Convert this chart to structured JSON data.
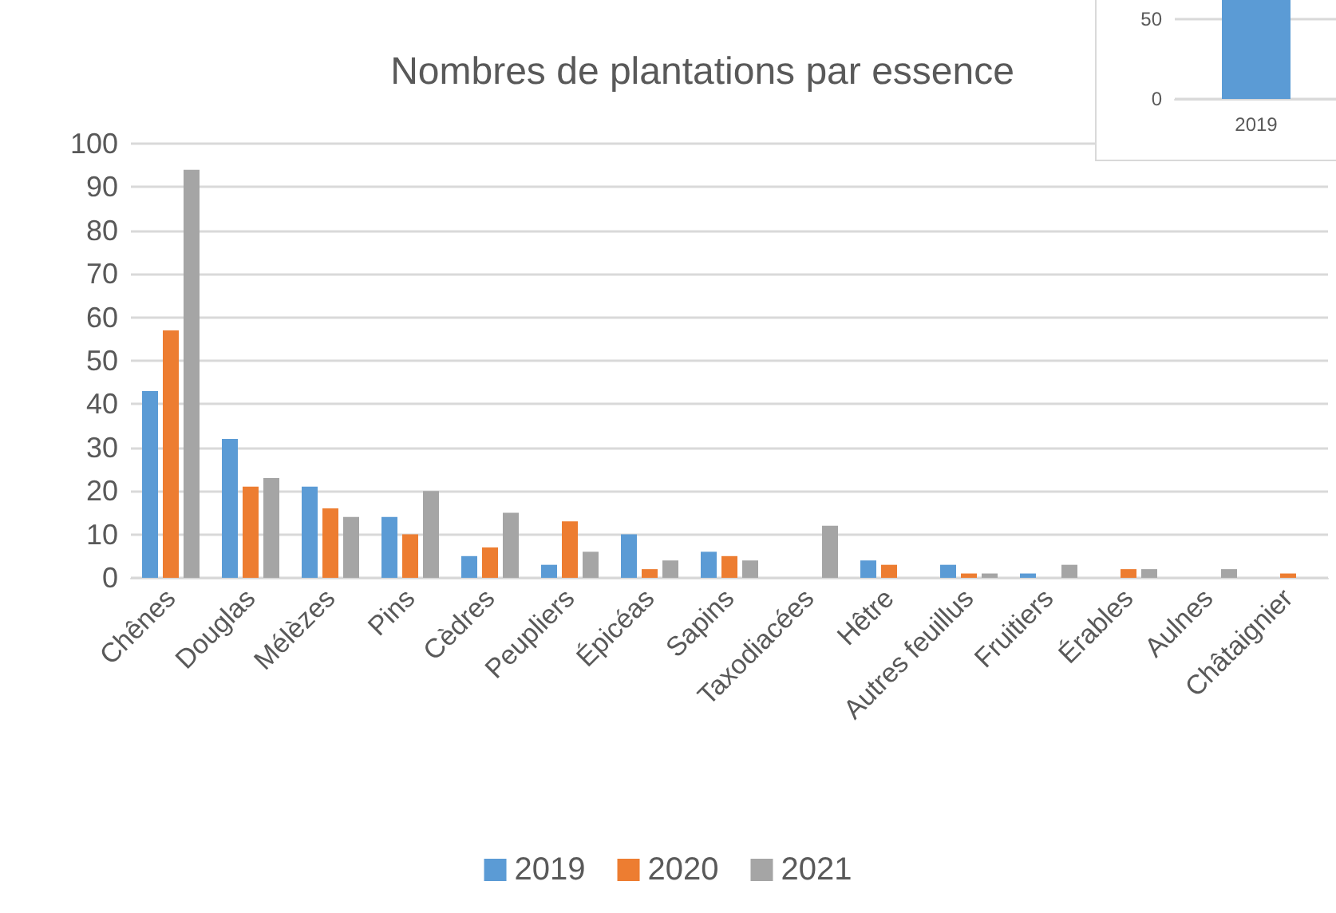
{
  "chart_data": [
    {
      "type": "bar",
      "title": "Nombres de plantations par essence",
      "categories": [
        "Chênes",
        "Douglas",
        "Mélèzes",
        "Pins",
        "Cèdres",
        "Peupliers",
        "Épicéas",
        "Sapins",
        "Taxodiacées",
        "Hêtre",
        "Autres feuillus",
        "Fruitiers",
        "Érables",
        "Aulnes",
        "Châtaignier"
      ],
      "series": [
        {
          "name": "2019",
          "color": "#5b9bd5",
          "values": [
            43,
            32,
            21,
            14,
            5,
            3,
            10,
            6,
            null,
            4,
            3,
            1,
            null,
            null,
            null
          ]
        },
        {
          "name": "2020",
          "color": "#ed7d31",
          "values": [
            57,
            21,
            16,
            10,
            7,
            13,
            2,
            5,
            null,
            3,
            1,
            null,
            2,
            null,
            1
          ]
        },
        {
          "name": "2021",
          "color": "#a5a5a5",
          "values": [
            94,
            23,
            14,
            20,
            15,
            6,
            4,
            4,
            12,
            null,
            1,
            3,
            2,
            2,
            null
          ]
        }
      ],
      "ylim": [
        0,
        100
      ],
      "yticks": [
        0,
        10,
        20,
        30,
        40,
        50,
        60,
        70,
        80,
        90,
        100
      ],
      "grid": "y",
      "legend": "bottom"
    },
    {
      "type": "bar",
      "categories": [
        "2019"
      ],
      "values": [
        62
      ],
      "color": "#5b9bd5",
      "ylim": [
        0,
        62
      ],
      "yticks": [
        0,
        50
      ],
      "grid": "y"
    }
  ]
}
